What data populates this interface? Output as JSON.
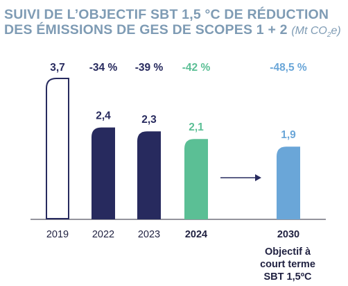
{
  "title": {
    "line1": "SUIVI DE L’OBJECTIF SBT 1,5 °C DE RÉDUCTION",
    "line2": "DES ÉMISSIONS DE GES DE SCOPES 1 + 2",
    "unit_prefix": "(Mt CO",
    "unit_sub": "2",
    "unit_suffix": "e)"
  },
  "colors": {
    "title": "#7e9bb4",
    "dark_navy": "#272a5e",
    "green": "#5bbf95",
    "light_blue": "#6aa6d8",
    "baseline": "#2a2a3a",
    "text": "#1f2040"
  },
  "arrow_icon": "right-arrow-icon",
  "target_caption": [
    "Objectif à",
    "court terme",
    "SBT 1,5ºC"
  ],
  "chart_data": {
    "type": "bar",
    "title": "SUIVI DE L’OBJECTIF SBT 1,5 °C DE RÉDUCTION DES ÉMISSIONS DE GES DE SCOPES 1 + 2 (Mt CO2e)",
    "categories": [
      "2019",
      "2022",
      "2023",
      "2024",
      "2030"
    ],
    "values": [
      3.7,
      2.4,
      2.3,
      2.1,
      1.9
    ],
    "value_labels": [
      "3,7",
      "2,4",
      "2,3",
      "2,1",
      "1,9"
    ],
    "change_labels": [
      "3,7",
      "-34 %",
      "-39 %",
      "-42 %",
      "-48,5 %"
    ],
    "styles": [
      "outline",
      "dark_navy",
      "dark_navy",
      "green",
      "light_blue"
    ],
    "bold_category": [
      "2024",
      "2030"
    ],
    "ylim": [
      0,
      3.7
    ],
    "grid": false,
    "legend": "none"
  }
}
